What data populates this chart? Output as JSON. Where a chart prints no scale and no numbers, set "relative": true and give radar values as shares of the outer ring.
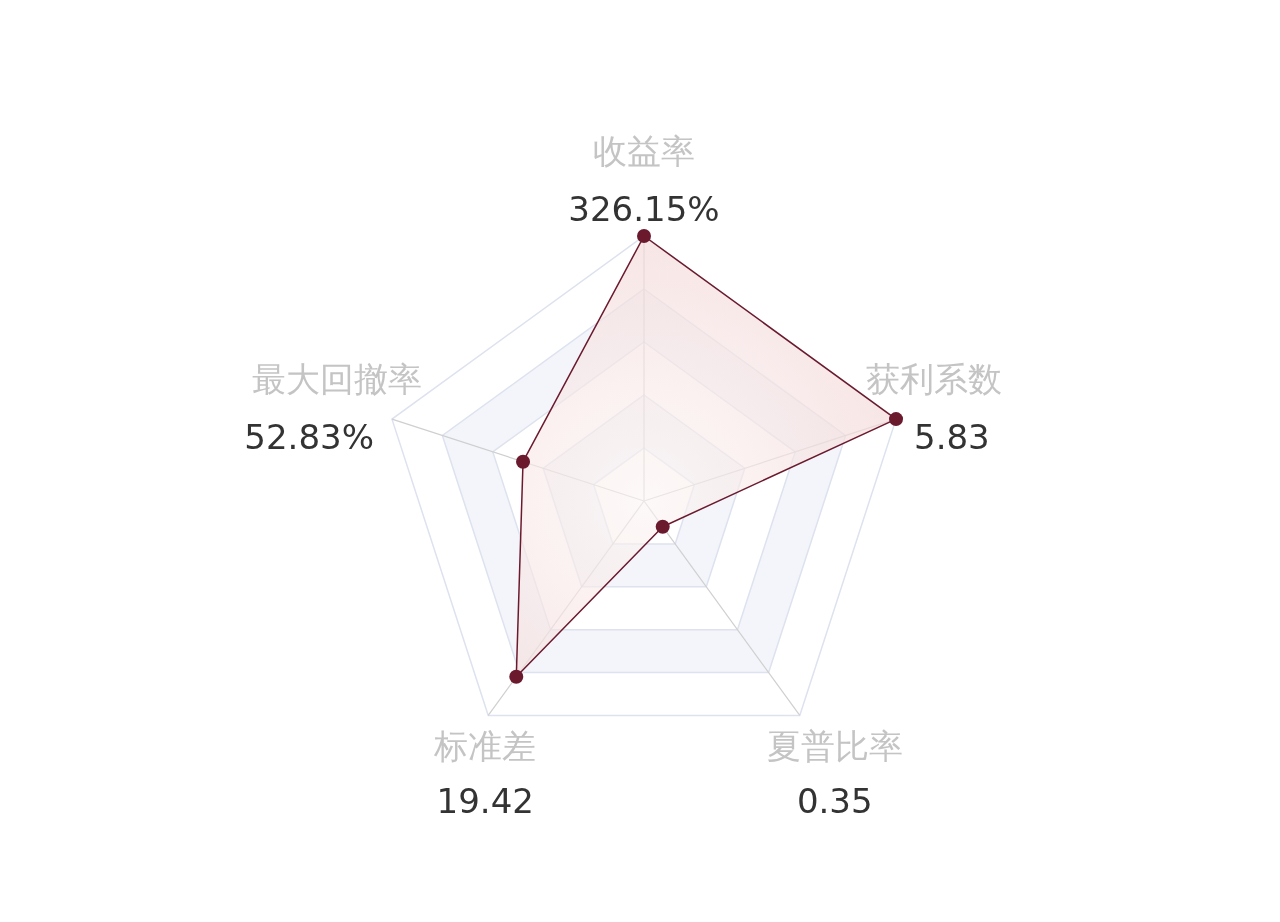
{
  "chart_data": {
    "type": "radar",
    "relative": true,
    "categories": [
      "收益率\n326.15%",
      "获利系数\n5.83",
      "夏普比率\n0.35",
      "标准差\n19.42",
      "最大回撤率\n52.83%"
    ],
    "series": [
      {
        "color": "#6b1a2e",
        "values": [
          1.0,
          1.0,
          0.12,
          0.82,
          0.48
        ]
      }
    ],
    "marker": "circle"
  }
}
